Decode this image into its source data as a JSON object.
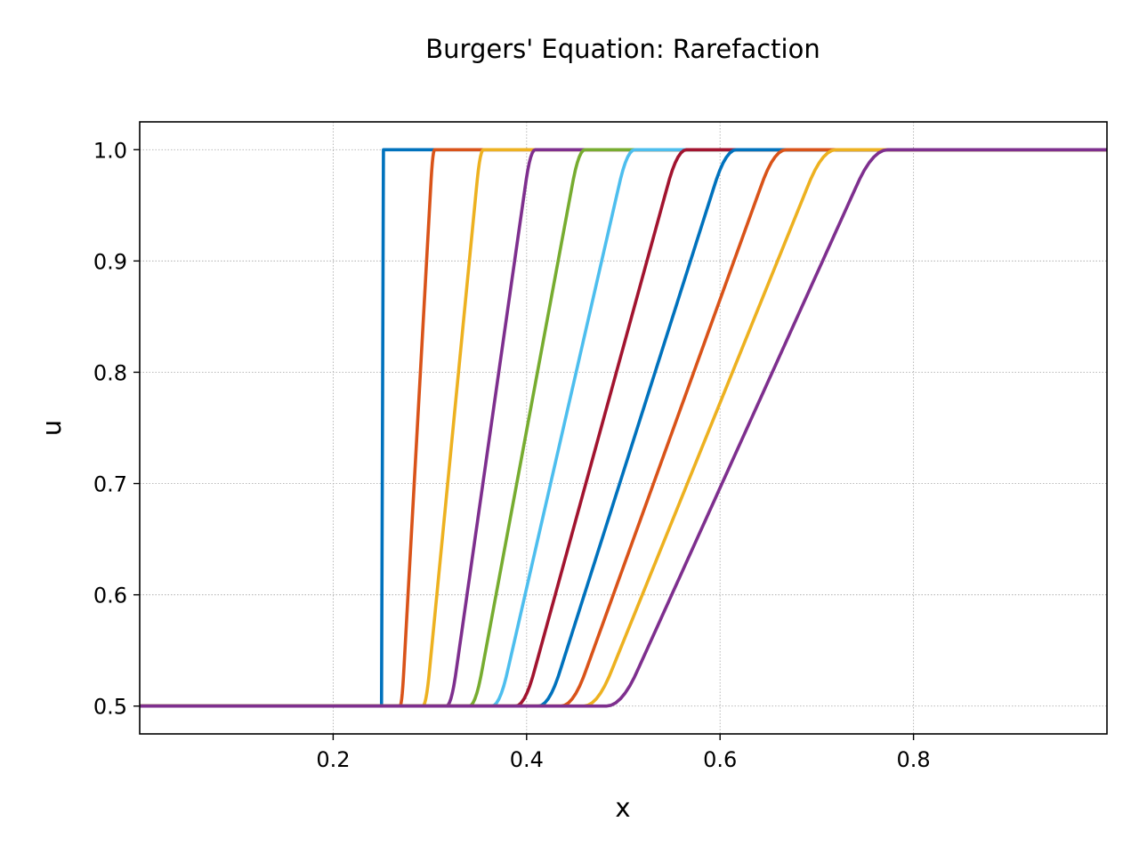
{
  "chart_data": {
    "type": "line",
    "title": "Burgers' Equation: Rarefaction",
    "xlabel": "x",
    "ylabel": "u",
    "xlim": [
      0.0,
      1.0
    ],
    "ylim": [
      0.475,
      1.025
    ],
    "xticks": [
      "0.2",
      "0.4",
      "0.6",
      "0.8"
    ],
    "yticks": [
      "0.5",
      "0.6",
      "0.7",
      "0.8",
      "0.9",
      "1.0"
    ],
    "grid": true,
    "u_left": 0.5,
    "u_right": 1.0,
    "series": [
      {
        "color": "#0072BD",
        "ramp_start": 0.25,
        "ramp_end": 0.25
      },
      {
        "color": "#D95319",
        "ramp_start": 0.271,
        "ramp_end": 0.303
      },
      {
        "color": "#EDB120",
        "ramp_start": 0.296,
        "ramp_end": 0.352
      },
      {
        "color": "#7E2F8E",
        "ramp_start": 0.322,
        "ramp_end": 0.404
      },
      {
        "color": "#77AC30",
        "ramp_start": 0.347,
        "ramp_end": 0.454
      },
      {
        "color": "#4DBEEE",
        "ramp_start": 0.372,
        "ramp_end": 0.504
      },
      {
        "color": "#A2142F",
        "ramp_start": 0.398,
        "ramp_end": 0.556
      },
      {
        "color": "#0072BD",
        "ramp_start": 0.423,
        "ramp_end": 0.606
      },
      {
        "color": "#D95319",
        "ramp_start": 0.448,
        "ramp_end": 0.656
      },
      {
        "color": "#EDB120",
        "ramp_start": 0.473,
        "ramp_end": 0.706
      },
      {
        "color": "#7E2F8E",
        "ramp_start": 0.498,
        "ramp_end": 0.758
      }
    ]
  }
}
